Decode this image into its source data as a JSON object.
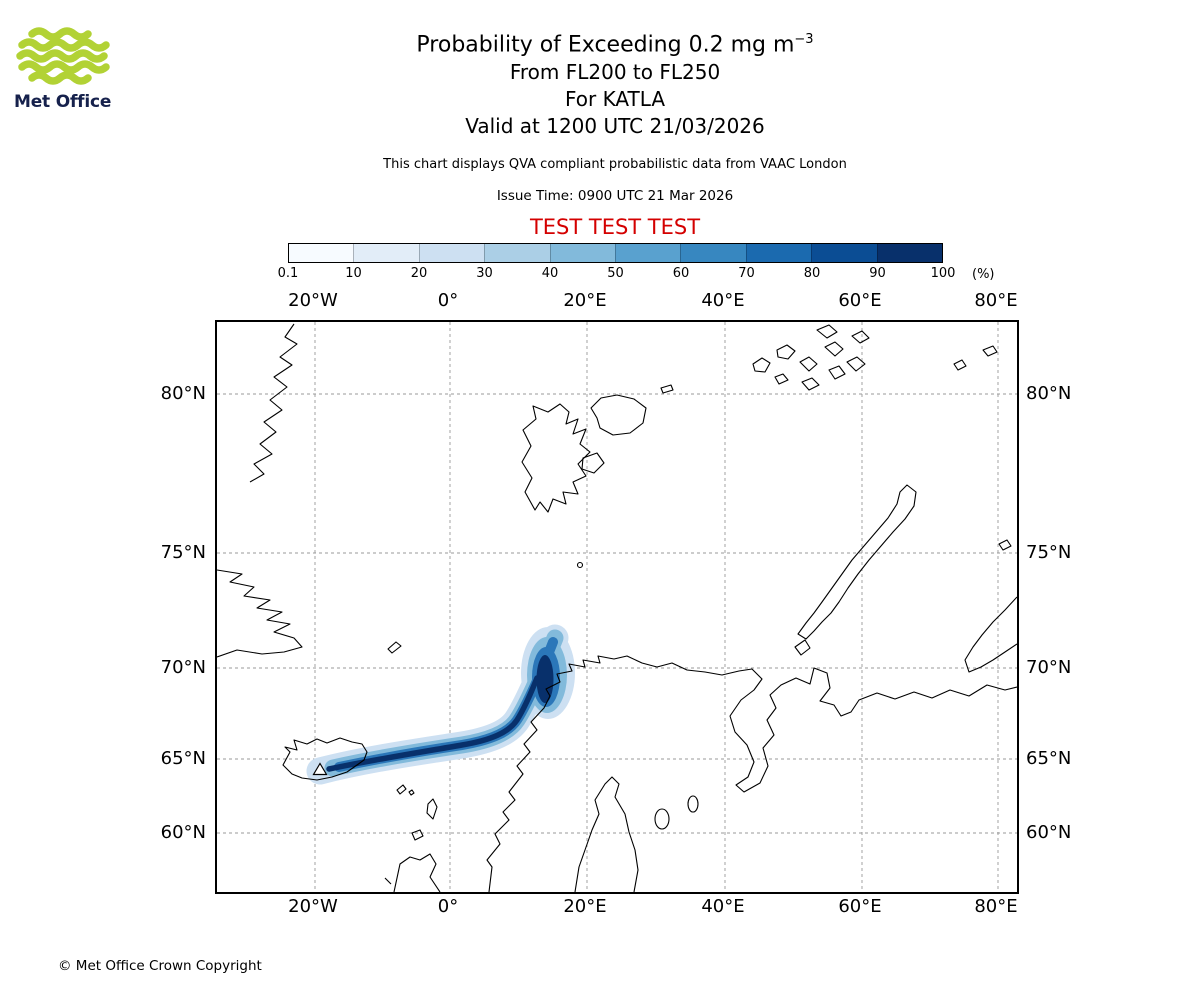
{
  "logo": {
    "text": "Met Office",
    "green": "#b2d235",
    "navy": "#16214c"
  },
  "header": {
    "title_main": "Probability of Exceeding 0.2 mg m",
    "title_sup": "−3",
    "subtitle1": "From FL200 to FL250",
    "subtitle2": "For KATLA",
    "subtitle3": "Valid at 1200 UTC 21/03/2026",
    "note": "This chart displays QVA compliant probabilistic data from VAAC London",
    "issue_time": "Issue Time: 0900 UTC 21 Mar 2026",
    "test_banner": "TEST TEST TEST",
    "test_color": "#d40000"
  },
  "colorbar": {
    "labels": [
      "0.1",
      "10",
      "20",
      "30",
      "40",
      "50",
      "60",
      "70",
      "80",
      "90",
      "100"
    ],
    "unit": "(%)",
    "colors": [
      "#f7fbff",
      "#e2edf8",
      "#cde0f2",
      "#abcfe6",
      "#82badb",
      "#59a1cf",
      "#3787c0",
      "#1b6aaf",
      "#0b4d94",
      "#08306b"
    ]
  },
  "map": {
    "lon_labels": [
      "20°W",
      "0°",
      "20°E",
      "40°E",
      "60°E",
      "80°E"
    ],
    "lat_labels": [
      "80°N",
      "75°N",
      "70°N",
      "65°N",
      "60°N"
    ],
    "volcano_name": "KATLA"
  },
  "footer": {
    "copyright": "© Met Office Crown Copyright"
  },
  "chart_data": {
    "type": "heatmap",
    "title": "Probability of Exceeding 0.2 mg m⁻³",
    "subtitle": [
      "From FL200 to FL250",
      "For KATLA",
      "Valid at 1200 UTC 21/03/2026"
    ],
    "colorbar_percent_ticks": [
      0.1,
      10,
      20,
      30,
      40,
      50,
      60,
      70,
      80,
      90,
      100
    ],
    "colorbar_unit": "%",
    "x_ticks_longitude": [
      "20°W",
      "0°",
      "20°E",
      "40°E",
      "60°E",
      "80°E"
    ],
    "y_ticks_latitude": [
      "80°N",
      "75°N",
      "70°N",
      "65°N",
      "60°N"
    ],
    "grid": true,
    "legend_position": "top",
    "plume": {
      "source_volcano": "KATLA",
      "source_location_approx": {
        "lon": -19,
        "lat": 63.6
      },
      "description": "Ash probability plume extends ENE from Katla (southern Iceland) across the Norwegian Sea, widening and curving north near the Norwegian coast to a head near 71.5N 15E",
      "max_probability_band_percent": "90-100",
      "head_center_approx": {
        "lon": 14,
        "lat": 70.5
      }
    }
  }
}
